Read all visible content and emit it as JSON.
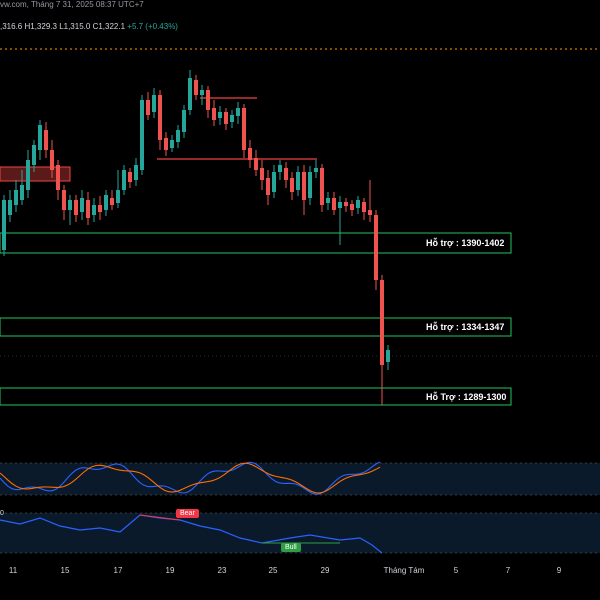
{
  "header": {
    "source_date": "vw.com, Tháng 7 31, 2025 08:37 UTC+7",
    "open_partial": ",316.6",
    "high": "H1,329.3",
    "low": "L1,315.0",
    "close": "C1,322.1",
    "change": "+5.7 (+0.43%)"
  },
  "zones": [
    {
      "label": "Hỗ trợ : 1390-1402"
    },
    {
      "label": "Hỗ trợ : 1334-1347"
    },
    {
      "label": "Hỗ Trợ : 1289-1300"
    }
  ],
  "x_axis_labels": [
    "11",
    "15",
    "17",
    "19",
    "23",
    "25",
    "29",
    "Tháng Tám",
    "5",
    "7",
    "9"
  ],
  "indicator": {
    "zero_label": "0",
    "bear_label": "Bear",
    "bull_label": "Bull"
  },
  "colors": {
    "bull": "#26a69a",
    "bear": "#ef5350",
    "zone": "#22c55e",
    "resistance": "#ef4444",
    "stoch_k": "#2962ff",
    "stoch_d": "#ff6d00",
    "rsi": "#2962ff"
  }
}
